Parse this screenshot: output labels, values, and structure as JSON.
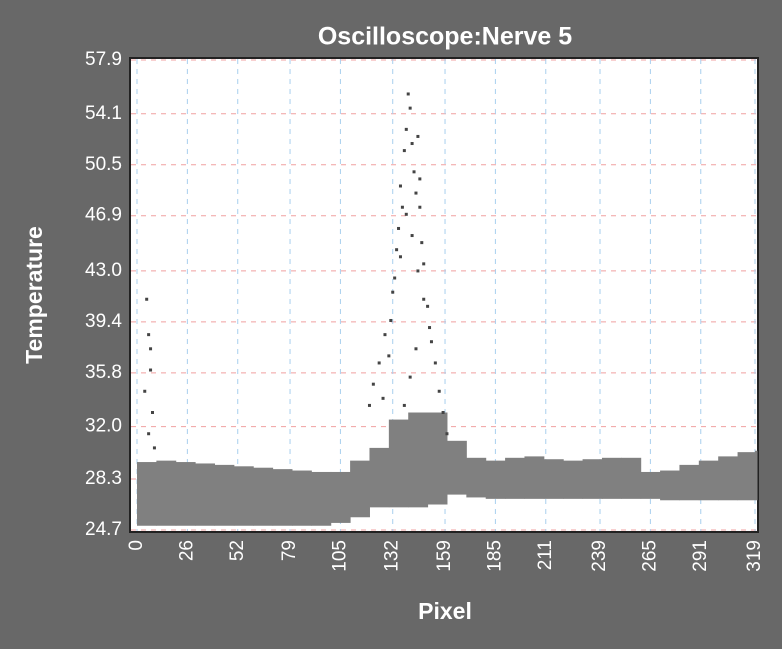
{
  "chart_data": {
    "type": "scatter",
    "title": "Oscilloscope:Nerve 5",
    "x_label": "Pixel",
    "y_label": "Temperature",
    "xlim": [
      0,
      319
    ],
    "ylim": [
      24.7,
      57.9
    ],
    "xticks": [
      0,
      26,
      52,
      79,
      105,
      132,
      159,
      185,
      211,
      239,
      265,
      291,
      319
    ],
    "yticks": [
      24.7,
      28.3,
      {
        "value": 32,
        "label": "32.0"
      },
      35.8,
      39.4,
      {
        "value": 43,
        "label": "43.0"
      },
      46.9,
      50.5,
      54.1,
      57.9
    ],
    "grid": true,
    "band_color": "#808080",
    "point_color": "#444444",
    "band": {
      "x": [
        0,
        10,
        20,
        30,
        40,
        50,
        60,
        70,
        80,
        90,
        100,
        110,
        120,
        130,
        140,
        150,
        160,
        170,
        180,
        190,
        200,
        210,
        220,
        230,
        240,
        250,
        260,
        270,
        280,
        290,
        300,
        310,
        319
      ],
      "upper": [
        29.5,
        29.6,
        29.5,
        29.4,
        29.3,
        29.2,
        29.1,
        29.0,
        28.9,
        28.8,
        28.8,
        29.6,
        30.5,
        32.5,
        33.0,
        33.0,
        31.0,
        29.8,
        29.6,
        29.8,
        29.9,
        29.7,
        29.6,
        29.7,
        29.8,
        29.8,
        28.8,
        28.9,
        29.3,
        29.6,
        29.9,
        30.2,
        30.3
      ],
      "lower": [
        25.0,
        25.0,
        25.0,
        25.0,
        25.0,
        25.0,
        25.0,
        25.0,
        25.0,
        25.0,
        25.2,
        25.6,
        26.3,
        26.3,
        26.3,
        26.5,
        27.2,
        27.0,
        26.9,
        26.9,
        26.9,
        26.9,
        26.9,
        26.9,
        26.9,
        26.9,
        26.9,
        26.8,
        26.8,
        26.8,
        26.8,
        26.8,
        26.8
      ]
    },
    "points": {
      "x": [
        5,
        6,
        7,
        8,
        6,
        4,
        9,
        7,
        120,
        122,
        125,
        127,
        128,
        130,
        132,
        134,
        135,
        136,
        137,
        138,
        139,
        140,
        141,
        142,
        143,
        144,
        145,
        146,
        147,
        148,
        150,
        152,
        154,
        156,
        158,
        160,
        131,
        133,
        136,
        139,
        142,
        145,
        148,
        151,
        144,
        141,
        138,
        146
      ],
      "y": [
        41.0,
        38.5,
        36.0,
        33.0,
        31.5,
        34.5,
        30.5,
        37.5,
        33.5,
        35.0,
        36.5,
        34.0,
        38.5,
        37.0,
        41.5,
        44.5,
        46.0,
        49.0,
        47.5,
        51.5,
        53.0,
        55.5,
        54.5,
        52.0,
        50.0,
        48.5,
        52.5,
        49.5,
        45.0,
        43.5,
        40.5,
        38.0,
        36.5,
        34.5,
        33.0,
        31.5,
        39.5,
        42.5,
        44.0,
        47.0,
        45.5,
        43.0,
        41.0,
        39.0,
        37.5,
        35.5,
        33.5,
        47.5
      ]
    }
  }
}
